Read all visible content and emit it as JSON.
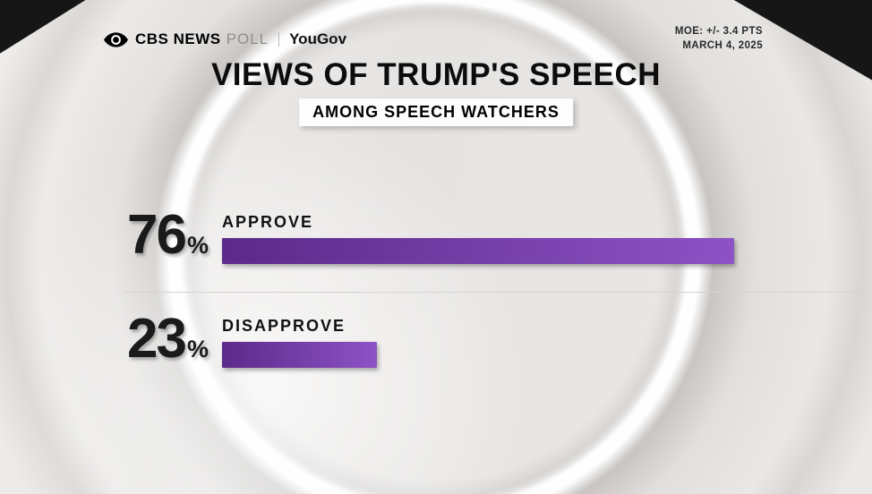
{
  "header": {
    "brand": {
      "logo": "cbs-eye-icon",
      "cbs_news": "CBS NEWS",
      "poll": "POLL",
      "yougov": "YouGov"
    },
    "moe": "MOE: +/- 3.4 PTS",
    "date": "MARCH 4, 2025"
  },
  "title": "VIEWS OF TRUMP'S SPEECH",
  "subtitle": "AMONG SPEECH WATCHERS",
  "chart_data": {
    "type": "bar",
    "orientation": "horizontal",
    "title": "VIEWS OF TRUMP'S SPEECH",
    "subtitle": "AMONG SPEECH WATCHERS",
    "categories": [
      "APPROVE",
      "DISAPPROVE"
    ],
    "values": [
      76,
      23
    ],
    "unit": "%",
    "value_range": [
      0,
      100
    ],
    "source": "CBS NEWS POLL | YouGov",
    "moe": "MOE: +/- 3.4 PTS",
    "date": "MARCH 4, 2025",
    "legend": "none",
    "grid": "off"
  },
  "colors": {
    "bar_gradient_start": "#5c2a8a",
    "bar_gradient_end": "#8d52c5",
    "text": "#1b1b1b",
    "background": "#e9e7e5"
  }
}
